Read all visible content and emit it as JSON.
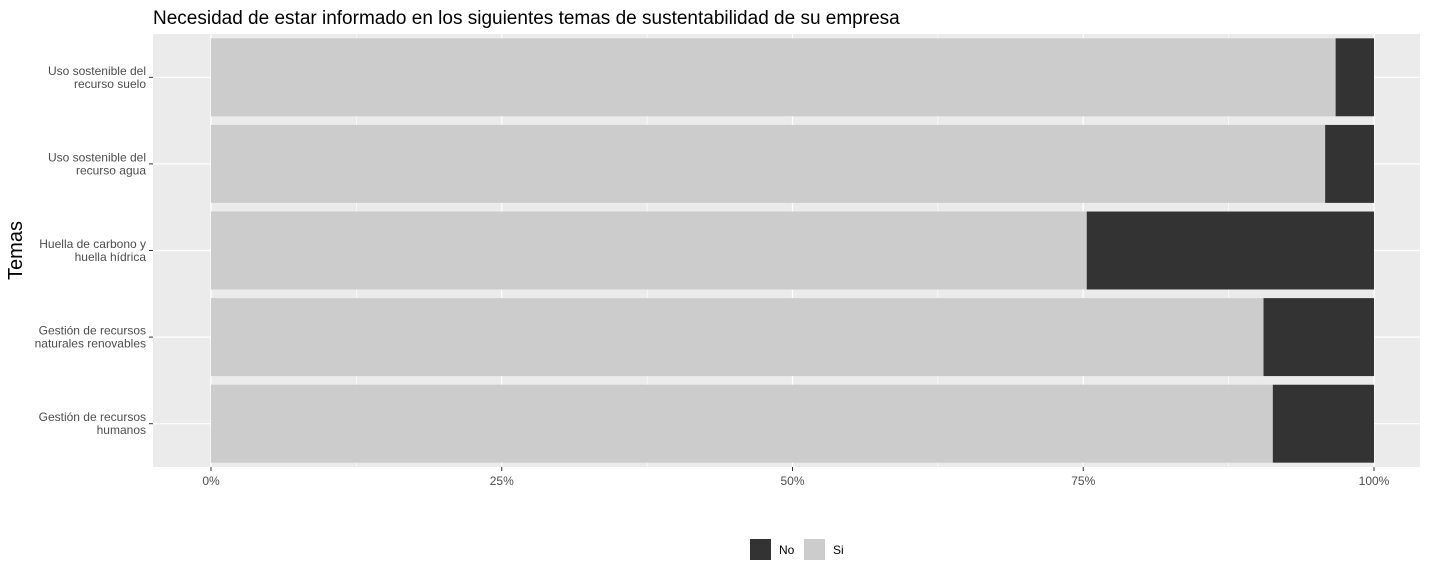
{
  "chart_data": {
    "type": "bar",
    "orientation": "horizontal",
    "stacked": "percent",
    "title": "Necesidad de  estar informado en los siguientes temas de sustentabilidad de su empresa",
    "ylabel": "Temas",
    "xlabel": "",
    "categories": [
      [
        "Uso sostenible del",
        "recurso suelo"
      ],
      [
        "Uso sostenible del",
        "recurso agua"
      ],
      [
        "Huella de carbono y",
        "huella hídrica"
      ],
      [
        "Gestión de recursos",
        "naturales renovables"
      ],
      [
        "Gestión de recursos",
        "humanos"
      ]
    ],
    "series": [
      {
        "name": "Si",
        "color": "#cccccc",
        "values": [
          96.7,
          95.8,
          75.3,
          90.5,
          91.3
        ]
      },
      {
        "name": "No",
        "color": "#333333",
        "values": [
          3.3,
          4.2,
          24.7,
          9.5,
          8.7
        ]
      }
    ],
    "x_ticks": [
      "0%",
      "25%",
      "50%",
      "75%",
      "100%"
    ],
    "xlim": [
      0,
      100
    ],
    "grid": true,
    "panel_color": "#ebebeb",
    "legend": {
      "position": "bottom",
      "order": [
        "No",
        "Si"
      ]
    }
  }
}
